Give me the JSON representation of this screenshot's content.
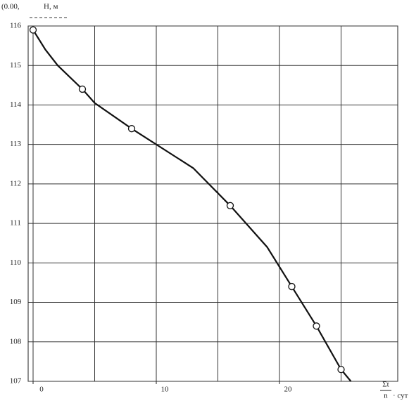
{
  "chart_data": {
    "type": "line",
    "y_label": "Н, м",
    "y_annotation": "(0.00,",
    "x_label_numerator": "Σt",
    "x_label_denominator": "n",
    "x_label_unit": "· сут",
    "xlim": [
      -0.4,
      29.6
    ],
    "ylim": [
      107,
      116
    ],
    "xticks": [
      0,
      10,
      20
    ],
    "xgrid": [
      0,
      5,
      10,
      15,
      20,
      25
    ],
    "yticks": [
      107,
      108,
      109,
      110,
      111,
      112,
      113,
      114,
      115,
      116
    ],
    "grid": true,
    "series": [
      {
        "color": "#111111",
        "marker": false,
        "x": [
          0,
          1,
          2,
          4,
          5,
          8,
          10,
          13,
          16,
          19,
          21,
          23,
          25,
          25.8
        ],
        "values": [
          115.9,
          115.4,
          115.0,
          114.4,
          114.05,
          113.4,
          113.0,
          112.4,
          111.45,
          110.4,
          109.4,
          108.4,
          107.3,
          107.0
        ]
      },
      {
        "color": "#111111",
        "marker": true,
        "x": [
          0,
          4,
          8,
          16,
          21,
          23,
          25
        ],
        "values": [
          115.9,
          114.4,
          113.4,
          111.45,
          109.4,
          108.4,
          107.3
        ]
      }
    ]
  }
}
